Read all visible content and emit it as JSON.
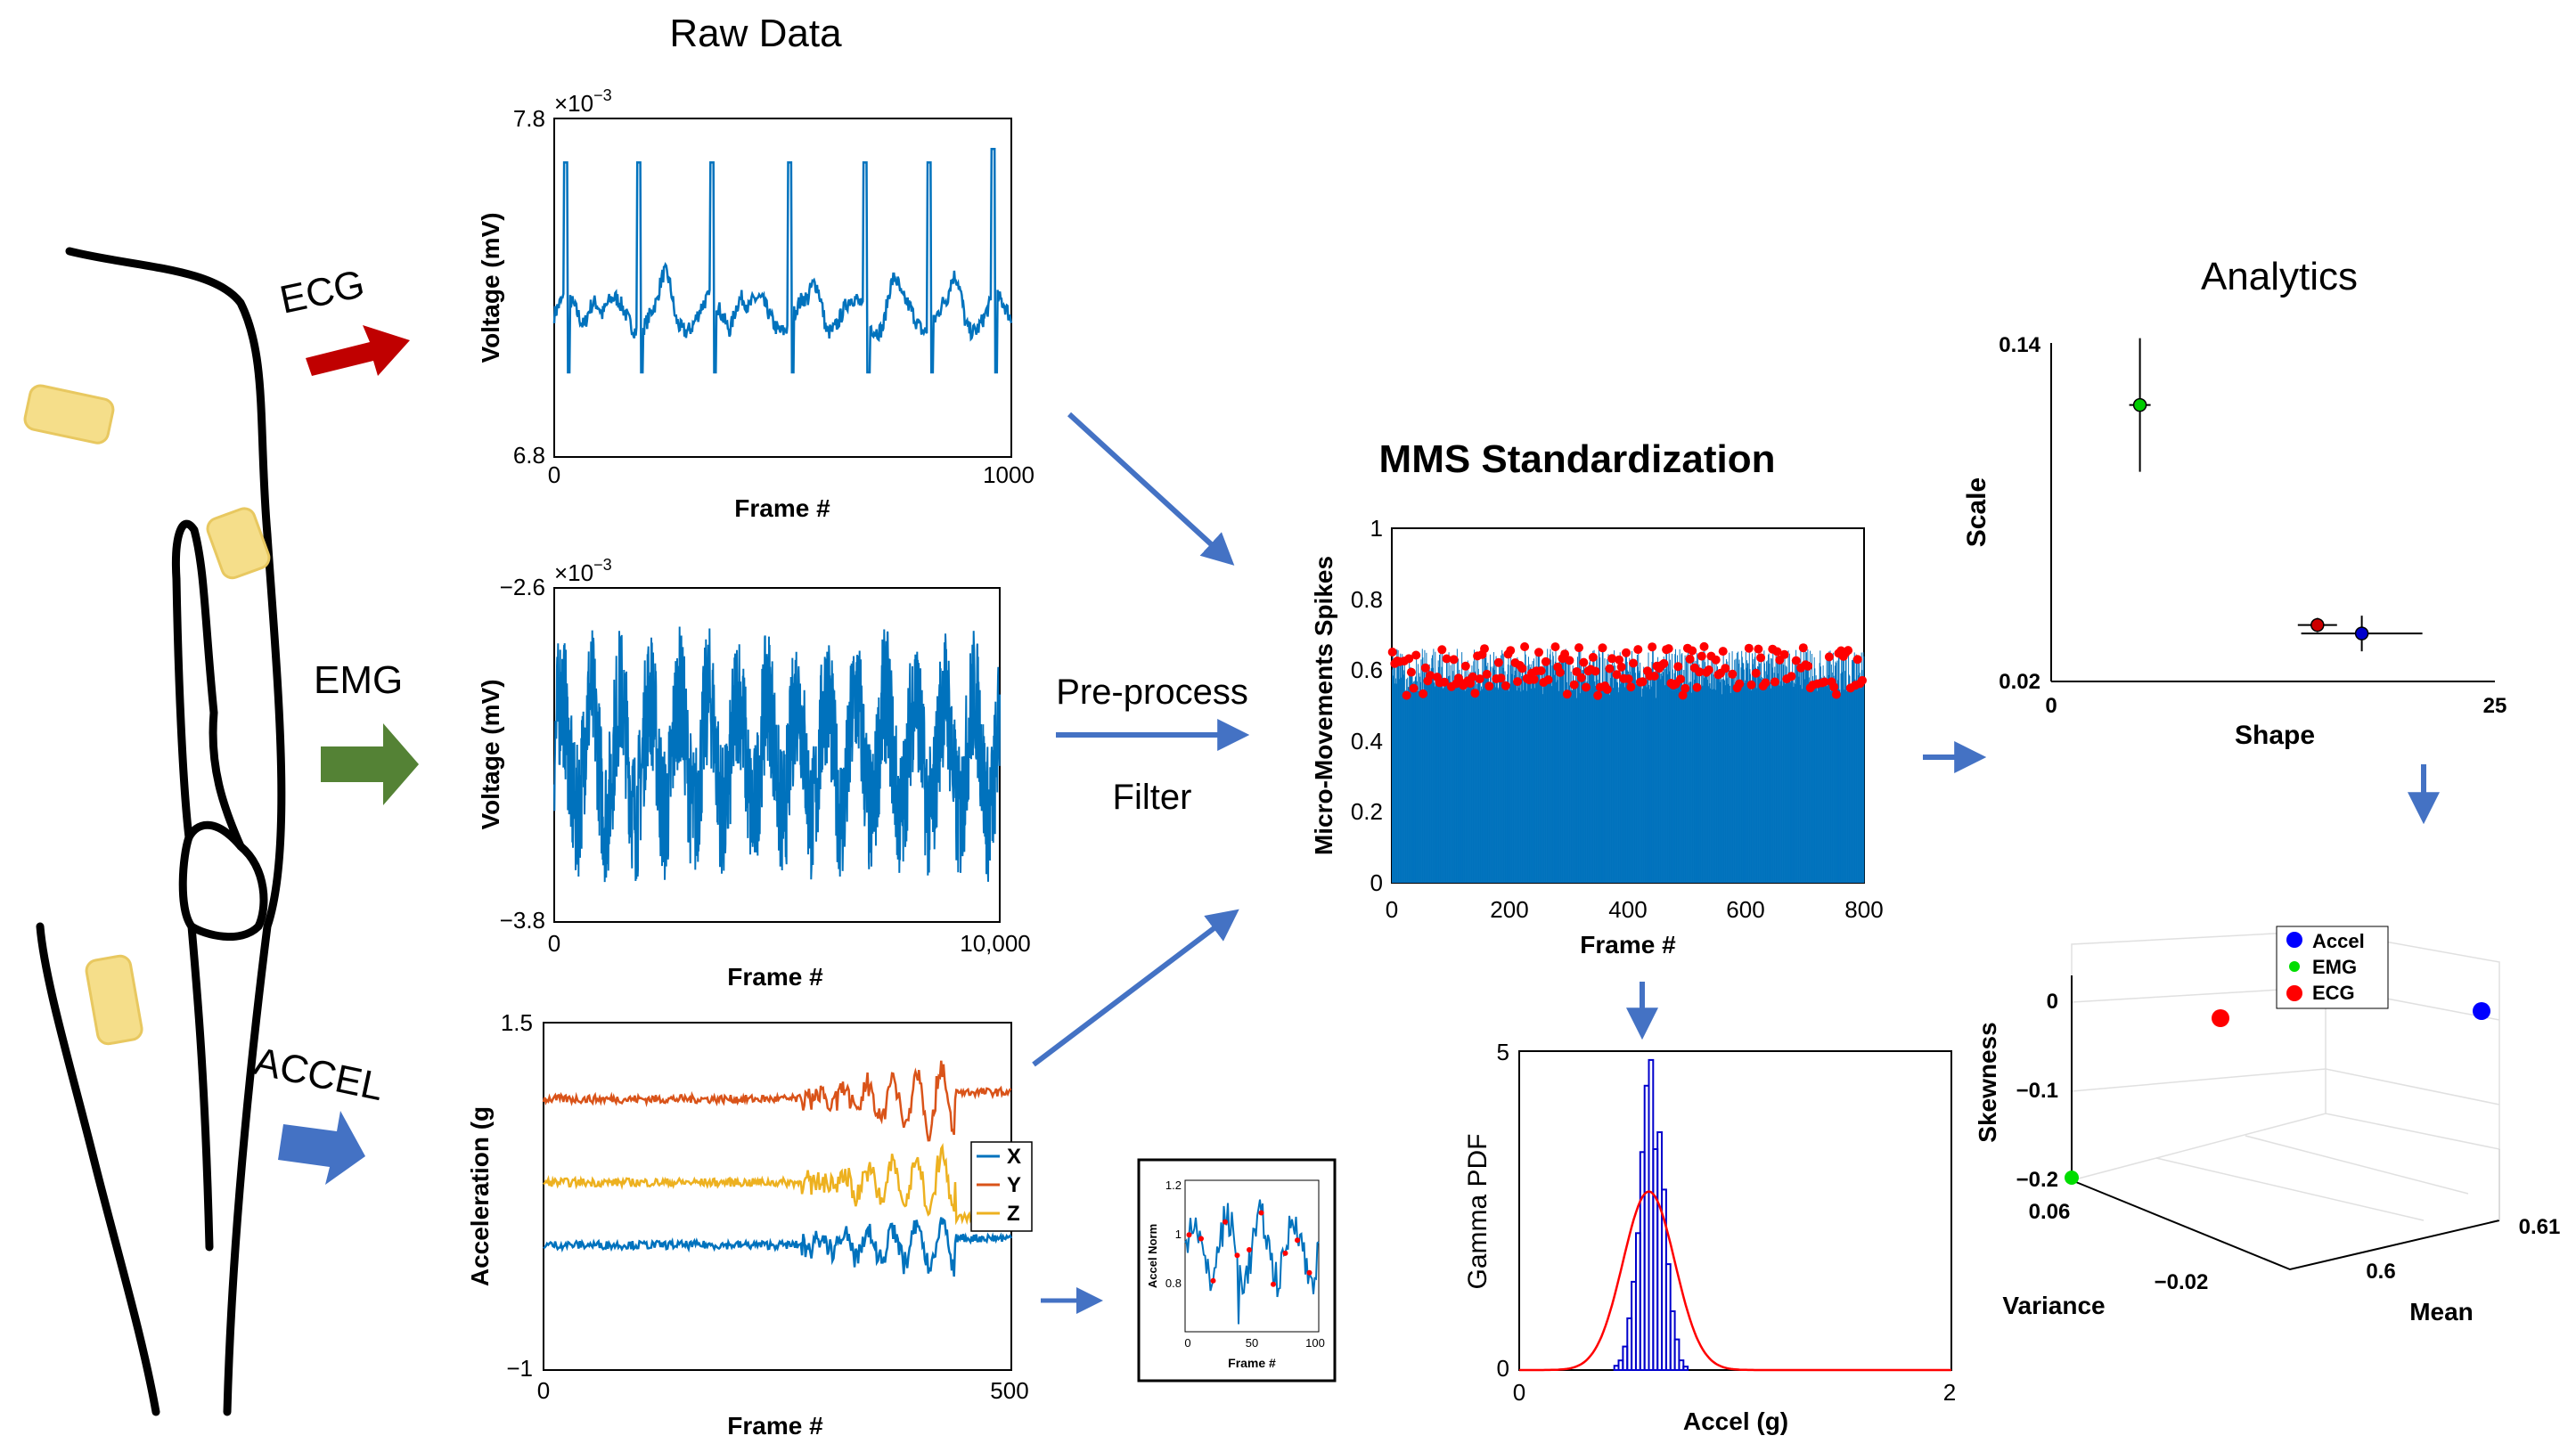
{
  "titles": {
    "raw_data": "Raw Data",
    "mms": "MMS Standardization",
    "analytics": "Analytics"
  },
  "inputs": {
    "ecg": "ECG",
    "emg": "EMG",
    "accel": "ACCEL"
  },
  "steps": {
    "preprocess": "Pre-process",
    "filter": "Filter"
  },
  "colors": {
    "ecg_arrow": "#c00000",
    "emg_arrow": "#548235",
    "accel_arrow": "#4472c4",
    "flow_arrow": "#4472c4",
    "signal_blue": "#0072bd",
    "signal_orange": "#d95319",
    "signal_yellow": "#edb120",
    "spike_red": "#ff0000",
    "sensor_yellow": "#f5de8a"
  },
  "ecg_plot": {
    "ylabel": "Voltage (mV)",
    "xlabel": "Frame #",
    "exponent": "×10",
    "exponent_power": "−3",
    "ytick_top": "7.8",
    "ytick_bottom": "6.8",
    "xtick_left": "0",
    "xtick_right": "1000"
  },
  "emg_plot": {
    "ylabel": "Voltage (mV)",
    "xlabel": "Frame #",
    "exponent": "×10",
    "exponent_power": "−3",
    "ytick_top": "−2.6",
    "ytick_bottom": "−3.8",
    "xtick_left": "0",
    "xtick_right": "10,000"
  },
  "accel_plot": {
    "ylabel": "Acceleration (g",
    "xlabel": "Frame #",
    "ytick_top": "1.5",
    "ytick_bottom": "−1",
    "xtick_left": "0",
    "xtick_right": "500",
    "legend": [
      "X",
      "Y",
      "Z"
    ]
  },
  "norm_plot": {
    "ylabel": "Accel Norm",
    "xlabel": "Frame #",
    "yticks": [
      "1.2",
      "1",
      "0.8"
    ],
    "xticks": [
      "0",
      "50",
      "100"
    ]
  },
  "mms_plot": {
    "ylabel": "Micro-Movements Spikes",
    "xlabel": "Frame #",
    "yticks": [
      "1",
      "0.8",
      "0.6",
      "0.4",
      "0.2",
      "0"
    ],
    "xticks": [
      "0",
      "200",
      "400",
      "600",
      "800"
    ]
  },
  "gamma_plot": {
    "ylabel": "Gamma PDF",
    "xlabel": "Accel (g)",
    "ytick_top": "5",
    "ytick_bottom": "0",
    "xtick_left": "0",
    "xtick_right": "2"
  },
  "scale_shape_plot": {
    "ylabel": "Scale",
    "xlabel": "Shape",
    "ytick_top": "0.14",
    "ytick_bottom": "0.02",
    "xtick_left": "0",
    "xtick_right": "25"
  },
  "moments_plot": {
    "zlabel": "Skewness",
    "xlabel": "Variance",
    "ylabel": "Mean",
    "zticks": [
      "0",
      "−0.1",
      "−0.2"
    ],
    "variance_ticks": [
      "0.06",
      "−0.02"
    ],
    "mean_ticks": [
      "0.6",
      "0.61"
    ],
    "legend": [
      "Accel",
      "EMG",
      "ECG"
    ]
  },
  "chart_data": [
    {
      "type": "line",
      "panel": "ECG raw data",
      "xlabel": "Frame #",
      "ylabel": "Voltage (mV)",
      "xlim": [
        0,
        1000
      ],
      "ylim": [
        0.0068,
        0.0078
      ],
      "series": [
        {
          "values_summary": "baseline ~0.00722 with 7 R-peaks ~0.00765-0.00775",
          "peak_x": [
            25,
            185,
            345,
            515,
            680,
            820,
            960
          ]
        }
      ]
    },
    {
      "type": "line",
      "panel": "EMG raw data",
      "xlabel": "Frame #",
      "ylabel": "Voltage (mV)",
      "xlim": [
        0,
        10000
      ],
      "ylim": [
        -0.0038,
        -0.0026
      ],
      "series": [
        {
          "values_summary": "noisy oscillation around -0.0032 between -0.0036 and -0.0027"
        }
      ]
    },
    {
      "type": "line",
      "panel": "ACCEL raw data",
      "xlabel": "Frame #",
      "ylabel": "Acceleration (g",
      "xlim": [
        0,
        500
      ],
      "ylim": [
        -1,
        1.5
      ],
      "series": [
        {
          "name": "X",
          "level": -0.1
        },
        {
          "name": "Y",
          "level": 0.95
        },
        {
          "name": "Z",
          "level": 0.35
        }
      ]
    },
    {
      "type": "bar",
      "panel": "MMS Standardization",
      "xlabel": "Frame #",
      "ylabel": "Micro-Movements Spikes",
      "xlim": [
        0,
        800
      ],
      "ylim": [
        0,
        1
      ],
      "series": [
        {
          "values_summary": "bars mostly 0.58-0.72, red spike markers at peaks"
        }
      ]
    },
    {
      "type": "bar",
      "panel": "Gamma PDF histogram",
      "xlabel": "Accel (g)",
      "ylabel": "Gamma PDF",
      "xlim": [
        0,
        2
      ],
      "ylim": [
        0,
        5
      ],
      "series": [
        {
          "name": "fit",
          "peak_x": 0.6,
          "peak_y": 2.8
        },
        {
          "name": "histogram",
          "peak_x": 0.6,
          "peak_y": 4.6
        }
      ]
    },
    {
      "type": "scatter",
      "panel": "Scale vs Shape",
      "xlabel": "Shape",
      "ylabel": "Scale",
      "xlim": [
        0,
        25
      ],
      "ylim": [
        0.02,
        0.14
      ],
      "points": [
        {
          "name": "EMG",
          "x": 5,
          "y": 0.118
        },
        {
          "name": "ECG",
          "x": 15,
          "y": 0.04
        },
        {
          "name": "Accel",
          "x": 17.5,
          "y": 0.037
        }
      ]
    },
    {
      "type": "scatter",
      "panel": "Moments 3D",
      "xlabel": "Variance",
      "ylabel": "Mean",
      "zlabel": "Skewness",
      "points": [
        {
          "name": "Accel",
          "skewness": 0
        },
        {
          "name": "EMG",
          "skewness": -0.2
        },
        {
          "name": "ECG",
          "skewness": -0.02
        }
      ]
    }
  ]
}
